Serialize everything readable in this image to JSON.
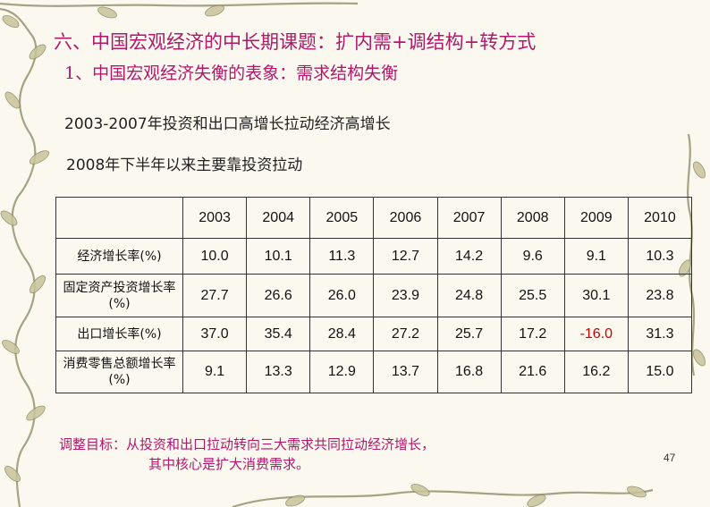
{
  "title": "六、中国宏观经济的中长期课题：扩内需+调结构+转方式",
  "subtitle": "1、中国宏观经济失衡的表象：需求结构失衡",
  "lines": [
    "2003-2007年投资和出口高增长拉动经济高增长",
    "2008年下半年以来主要靠投资拉动"
  ],
  "table": {
    "header": [
      "",
      "2003",
      "2004",
      "2005",
      "2006",
      "2007",
      "2008",
      "2009",
      "2010"
    ],
    "rows": [
      {
        "label": "经济增长率(%)",
        "values": [
          "10.0",
          "10.1",
          "11.3",
          "12.7",
          "14.2",
          "9.6",
          "9.1",
          "10.3"
        ]
      },
      {
        "label": "固定资产投资增长率(%)",
        "values": [
          "27.7",
          "26.6",
          "26.0",
          "23.9",
          "24.8",
          "25.5",
          "30.1",
          "23.8"
        ]
      },
      {
        "label": "出口增长率(%)",
        "values": [
          "37.0",
          "35.4",
          "28.4",
          "27.2",
          "25.7",
          "17.2",
          "-16.0",
          "31.3"
        ]
      },
      {
        "label": "消费零售总额增长率(%)",
        "values": [
          "9.1",
          "13.3",
          "12.9",
          "13.7",
          "16.8",
          "21.6",
          "16.2",
          "15.0"
        ]
      }
    ]
  },
  "note": {
    "line1": "调整目标：从投资和出口拉动转向三大需求共同拉动经济增长，",
    "line2": "其中核心是扩大消费需求。"
  },
  "page_number": "47",
  "colors": {
    "accent": "#b0186a",
    "negative": "#cc0000",
    "background": "#fbf9ef"
  },
  "decoration": "vine-border"
}
